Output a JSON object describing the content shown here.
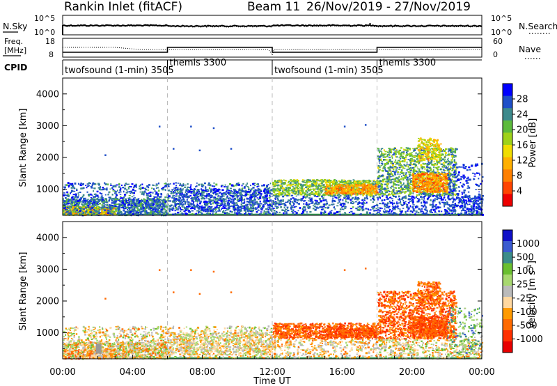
{
  "header": {
    "station": "Rankin Inlet (fitACF)",
    "beam": "Beam 11",
    "dates": "26/Nov/2019 - 27/Nov/2019"
  },
  "colors": {
    "power_scale": [
      "#0000ff",
      "#1f4fc8",
      "#3d8a8c",
      "#5dbb3c",
      "#9fd21a",
      "#f0dd00",
      "#ffb000",
      "#ff8000",
      "#ff4400",
      "#ee0000"
    ],
    "velocity_scale": [
      "#1010c8",
      "#3a5bd0",
      "#3b8c8a",
      "#6abf30",
      "#a8d870",
      "#bbbbbb",
      "#ffd8a0",
      "#ff9a00",
      "#ff6a00",
      "#ff3000",
      "#e80000"
    ],
    "ground": "#999999"
  },
  "chart_data": [
    {
      "name": "noise-panel",
      "type": "line",
      "left_label": "N.Sky",
      "left_ticks": [
        "10^5",
        "10^0"
      ],
      "right_label": "N.Search",
      "right_ticks": [
        "10^5",
        "10^0"
      ]
    },
    {
      "name": "freq-panel",
      "type": "line",
      "left_label_1": "Freq.",
      "left_label_2": "[MHz]",
      "left_ticks": [
        "18",
        "8"
      ],
      "right_label": "Nave",
      "right_ticks": [
        "60",
        "0"
      ]
    },
    {
      "name": "cpid-strip",
      "type": "table",
      "label": "CPID",
      "segments": [
        {
          "start": 0,
          "end": 6,
          "text": "twofsound (1-min) 3505"
        },
        {
          "start": 6,
          "end": 12,
          "text": "themis 3300"
        },
        {
          "start": 12,
          "end": 18,
          "text": "twofsound (1-min) 3505"
        },
        {
          "start": 18,
          "end": 24,
          "text": "themis 3300"
        }
      ]
    },
    {
      "name": "power-panel",
      "type": "heatmap",
      "ylabel": "Slant Range [km]",
      "ylim": [
        180,
        4500
      ],
      "yticks": [
        1000,
        2000,
        3000,
        4000
      ],
      "xlim": [
        0,
        24
      ],
      "colorbar_label": "Power [dB]",
      "colorbar_ticks": [
        "28",
        "24",
        "20",
        "16",
        "12",
        "8",
        "4"
      ],
      "colorbar_range": [
        0,
        30
      ]
    },
    {
      "name": "velocity-panel",
      "type": "heatmap",
      "ylabel": "Slant Range [km]",
      "ylim": [
        180,
        4500
      ],
      "yticks": [
        1000,
        2000,
        3000,
        4000
      ],
      "xlim": [
        0,
        24
      ],
      "xlabel": "Time UT",
      "xticks": [
        "00:00",
        "04:00",
        "08:00",
        "12:00",
        "16:00",
        "20:00",
        "00:00"
      ],
      "colorbar_label": "Velocity [m s-1]",
      "colorbar_ticks": [
        "1000",
        "500",
        "100",
        "25",
        "-25",
        "-100",
        "-500",
        "-1000"
      ]
    }
  ]
}
